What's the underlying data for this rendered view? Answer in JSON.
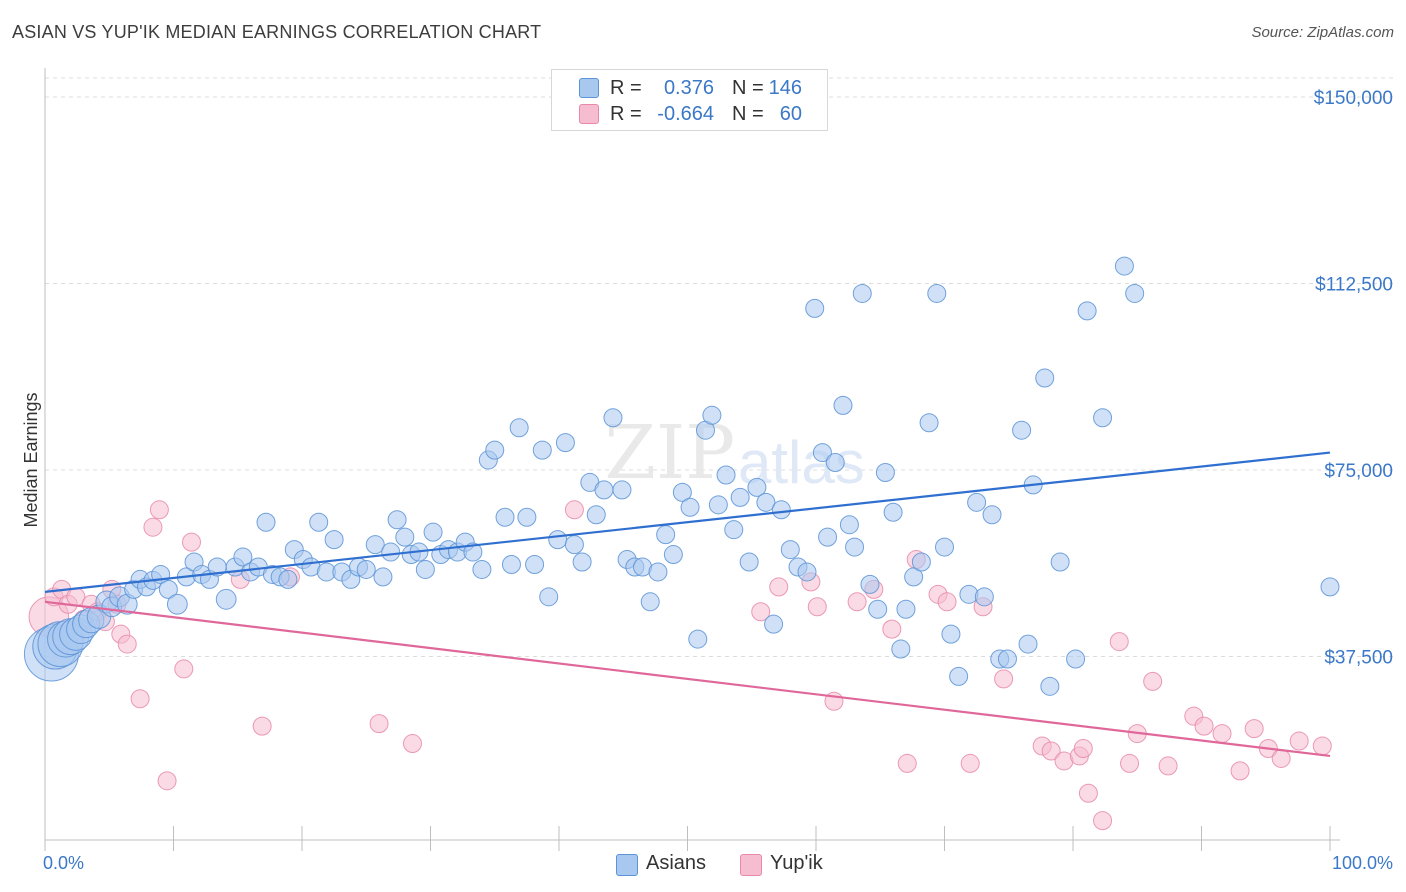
{
  "title": "ASIAN VS YUP'IK MEDIAN EARNINGS CORRELATION CHART",
  "source": "Source: ZipAtlas.com",
  "watermark": "ZIPatlas",
  "colors": {
    "asians_fill": "#a9c8f0",
    "asians_stroke": "#5b93d6",
    "asians_line": "#2f6fd0",
    "yupik_fill": "#f6bccf",
    "yupik_stroke": "#e889aa",
    "yupik_line": "#e0679a",
    "tick_text": "#3b78c8",
    "grid": "#dcdcdc"
  },
  "legend": {
    "rows": [
      {
        "r_label": "R =",
        "r_value": "0.376",
        "n_label": "N =",
        "n_value": "146"
      },
      {
        "r_label": "R =",
        "r_value": "-0.664",
        "n_label": "N =",
        "n_value": "60"
      }
    ]
  },
  "bottom_legend": [
    "Asians",
    "Yup'ik"
  ],
  "chart_data": {
    "type": "scatter",
    "title": "ASIAN VS YUP'IK MEDIAN EARNINGS CORRELATION CHART",
    "xlabel": "",
    "ylabel": "Median Earnings",
    "xlim": [
      0,
      100
    ],
    "ylim": [
      0,
      150000
    ],
    "x_tick_labels": [
      "0.0%",
      "100.0%"
    ],
    "y_ticks": [
      37500,
      75000,
      112500,
      150000
    ],
    "y_tick_labels": [
      "$37,500",
      "$75,000",
      "$112,500",
      "$150,000"
    ],
    "grid": true,
    "legend_placement": "top-center",
    "series": [
      {
        "name": "Asians",
        "trend": {
          "x": [
            0,
            100
          ],
          "y": [
            50500,
            78500
          ]
        },
        "points": [
          [
            0.5,
            38000,
            3
          ],
          [
            0.8,
            39500,
            2.5
          ],
          [
            1.2,
            40000,
            2.5
          ],
          [
            1.6,
            41000,
            2
          ],
          [
            2,
            41500,
            2
          ],
          [
            2.4,
            42000,
            1.8
          ],
          [
            2.8,
            43000,
            1.6
          ],
          [
            3.2,
            44000,
            1.5
          ],
          [
            3.6,
            44800,
            1.4
          ],
          [
            4.2,
            45500,
            1.3
          ],
          [
            4.8,
            48500,
            1.2
          ],
          [
            5.2,
            47500,
            1.1
          ],
          [
            5.8,
            49500,
            1.1
          ],
          [
            6.4,
            48000,
            1.1
          ],
          [
            6.9,
            51000,
            1
          ],
          [
            7.4,
            53000,
            1
          ],
          [
            7.9,
            51500,
            1
          ],
          [
            8.4,
            52800,
            1
          ],
          [
            9,
            54000,
            1
          ],
          [
            9.6,
            51000,
            1
          ],
          [
            10.3,
            48000,
            1.1
          ],
          [
            11,
            53500,
            1
          ],
          [
            11.6,
            56500,
            1
          ],
          [
            12.2,
            54000,
            1
          ],
          [
            12.8,
            53000,
            1
          ],
          [
            13.4,
            55500,
            1
          ],
          [
            14.1,
            49000,
            1.1
          ],
          [
            14.8,
            55500,
            1
          ],
          [
            15.4,
            57500,
            1
          ],
          [
            16,
            54500,
            1
          ],
          [
            16.6,
            55500,
            1
          ],
          [
            17.2,
            64500,
            1
          ],
          [
            17.7,
            54000,
            1
          ],
          [
            18.3,
            53500,
            1
          ],
          [
            18.9,
            53000,
            1
          ],
          [
            19.4,
            59000,
            1
          ],
          [
            20.1,
            57000,
            1
          ],
          [
            20.7,
            55500,
            1
          ],
          [
            21.3,
            64500,
            1
          ],
          [
            21.9,
            54500,
            1
          ],
          [
            22.5,
            61000,
            1
          ],
          [
            23.1,
            54500,
            1
          ],
          [
            23.8,
            53000,
            1
          ],
          [
            24.4,
            55500,
            1
          ],
          [
            25,
            55000,
            1
          ],
          [
            25.7,
            60000,
            1
          ],
          [
            26.3,
            53500,
            1
          ],
          [
            26.9,
            58500,
            1
          ],
          [
            27.4,
            65000,
            1
          ],
          [
            28,
            61500,
            1
          ],
          [
            28.5,
            58000,
            1
          ],
          [
            29.1,
            58500,
            1
          ],
          [
            29.6,
            55000,
            1
          ],
          [
            30.2,
            62500,
            1
          ],
          [
            30.8,
            58000,
            1
          ],
          [
            31.4,
            59000,
            1
          ],
          [
            32.1,
            58500,
            1
          ],
          [
            32.7,
            60500,
            1
          ],
          [
            33.3,
            58500,
            1
          ],
          [
            34,
            55000,
            1
          ],
          [
            34.5,
            77000,
            1
          ],
          [
            35,
            79000,
            1
          ],
          [
            35.8,
            65500,
            1
          ],
          [
            36.3,
            56000,
            1
          ],
          [
            36.9,
            83500,
            1
          ],
          [
            37.5,
            65500,
            1
          ],
          [
            38.1,
            56000,
            1
          ],
          [
            38.7,
            79000,
            1
          ],
          [
            39.2,
            49500,
            1
          ],
          [
            39.9,
            61000,
            1
          ],
          [
            40.5,
            80500,
            1
          ],
          [
            41.2,
            60000,
            1
          ],
          [
            41.8,
            56500,
            1
          ],
          [
            42.4,
            72500,
            1
          ],
          [
            42.9,
            66000,
            1
          ],
          [
            43.5,
            71000,
            1
          ],
          [
            44.2,
            85500,
            1
          ],
          [
            44.9,
            71000,
            1
          ],
          [
            45.3,
            57000,
            1
          ],
          [
            45.9,
            55500,
            1
          ],
          [
            46.5,
            55500,
            1
          ],
          [
            47.1,
            48500,
            1
          ],
          [
            47.7,
            54500,
            1
          ],
          [
            48.3,
            62000,
            1
          ],
          [
            48.9,
            58000,
            1
          ],
          [
            49.6,
            70500,
            1
          ],
          [
            50.2,
            67500,
            1
          ],
          [
            50.8,
            41000,
            1
          ],
          [
            51.4,
            83000,
            1
          ],
          [
            51.9,
            86000,
            1
          ],
          [
            52.4,
            68000,
            1
          ],
          [
            53,
            74000,
            1
          ],
          [
            53.6,
            63000,
            1
          ],
          [
            54.1,
            69500,
            1
          ],
          [
            54.8,
            56500,
            1
          ],
          [
            55.4,
            71500,
            1
          ],
          [
            56.1,
            68500,
            1
          ],
          [
            56.7,
            44000,
            1
          ],
          [
            57.3,
            67000,
            1
          ],
          [
            58,
            59000,
            1
          ],
          [
            58.6,
            55500,
            1
          ],
          [
            59.3,
            54500,
            1
          ],
          [
            59.9,
            107500,
            1
          ],
          [
            60.5,
            78500,
            1
          ],
          [
            60.9,
            61500,
            1
          ],
          [
            61.5,
            76500,
            1
          ],
          [
            62.1,
            88000,
            1
          ],
          [
            62.6,
            64000,
            1
          ],
          [
            63,
            59500,
            1
          ],
          [
            63.6,
            110500,
            1
          ],
          [
            64.2,
            52000,
            1
          ],
          [
            64.8,
            47000,
            1
          ],
          [
            65.4,
            74500,
            1
          ],
          [
            66,
            66500,
            1
          ],
          [
            66.6,
            39000,
            1
          ],
          [
            67,
            47000,
            1
          ],
          [
            67.6,
            53500,
            1
          ],
          [
            68.2,
            56500,
            1
          ],
          [
            68.8,
            84500,
            1
          ],
          [
            69.4,
            110500,
            1
          ],
          [
            70,
            59500,
            1
          ],
          [
            70.5,
            42000,
            1
          ],
          [
            71.1,
            33500,
            1
          ],
          [
            71.9,
            50000,
            1
          ],
          [
            72.5,
            68500,
            1
          ],
          [
            73.1,
            49500,
            1
          ],
          [
            73.7,
            66000,
            1
          ],
          [
            74.3,
            37000,
            1
          ],
          [
            74.9,
            37000,
            1
          ],
          [
            76,
            83000,
            1
          ],
          [
            76.5,
            40000,
            1
          ],
          [
            76.9,
            72000,
            1
          ],
          [
            77.8,
            93500,
            1
          ],
          [
            78.2,
            31500,
            1
          ],
          [
            79,
            56500,
            1
          ],
          [
            80.2,
            37000,
            1
          ],
          [
            81.1,
            107000,
            1
          ],
          [
            82.3,
            85500,
            1
          ],
          [
            84,
            116000,
            1
          ],
          [
            84.8,
            110500,
            1
          ],
          [
            100,
            51500,
            1
          ]
        ]
      },
      {
        "name": "Yup'ik",
        "trend": {
          "x": [
            0,
            100
          ],
          "y": [
            48500,
            17500
          ]
        },
        "points": [
          [
            0.3,
            45500,
            2.2
          ],
          [
            0.7,
            49500,
            1
          ],
          [
            1.3,
            51000,
            1
          ],
          [
            1.8,
            48000,
            1
          ],
          [
            2.4,
            49500,
            1
          ],
          [
            3,
            45000,
            1
          ],
          [
            3.6,
            48000,
            1
          ],
          [
            4.1,
            46500,
            1
          ],
          [
            4.7,
            44500,
            1
          ],
          [
            5.2,
            51000,
            1
          ],
          [
            5.6,
            48000,
            1
          ],
          [
            5.9,
            42000,
            1
          ],
          [
            6.4,
            40000,
            1
          ],
          [
            7.4,
            29000,
            1
          ],
          [
            8.4,
            63500,
            1
          ],
          [
            8.9,
            67000,
            1
          ],
          [
            9.5,
            12500,
            1
          ],
          [
            10.8,
            35000,
            1
          ],
          [
            11.4,
            60500,
            1
          ],
          [
            15.2,
            53000,
            1
          ],
          [
            16.9,
            23500,
            1
          ],
          [
            19.1,
            53500,
            1
          ],
          [
            26,
            24000,
            1
          ],
          [
            28.6,
            20000,
            1
          ],
          [
            41.2,
            67000,
            1
          ],
          [
            55.7,
            46500,
            1
          ],
          [
            57.1,
            51500,
            1
          ],
          [
            59.6,
            52500,
            1
          ],
          [
            60.1,
            47500,
            1
          ],
          [
            61.4,
            28500,
            1
          ],
          [
            63.2,
            48500,
            1
          ],
          [
            64.5,
            51000,
            1
          ],
          [
            65.9,
            43000,
            1
          ],
          [
            67.1,
            16000,
            1
          ],
          [
            67.8,
            57000,
            1
          ],
          [
            69.5,
            50000,
            1
          ],
          [
            70.2,
            48500,
            1
          ],
          [
            72,
            16000,
            1
          ],
          [
            73,
            47500,
            1
          ],
          [
            74.6,
            33000,
            1
          ],
          [
            77.6,
            19500,
            1
          ],
          [
            78.3,
            18500,
            1
          ],
          [
            79.3,
            16500,
            1
          ],
          [
            80.5,
            17500,
            1
          ],
          [
            80.8,
            19000,
            1
          ],
          [
            81.2,
            10000,
            1
          ],
          [
            82.3,
            4500,
            1
          ],
          [
            83.6,
            40500,
            1
          ],
          [
            84.4,
            16000,
            1
          ],
          [
            85,
            22000,
            1
          ],
          [
            86.2,
            32500,
            1
          ],
          [
            87.4,
            15500,
            1
          ],
          [
            89.4,
            25500,
            1
          ],
          [
            90.2,
            23500,
            1
          ],
          [
            91.6,
            22000,
            1
          ],
          [
            93,
            14500,
            1
          ],
          [
            94.1,
            23000,
            1
          ],
          [
            95.2,
            19000,
            1
          ],
          [
            96.2,
            17000,
            1
          ],
          [
            97.6,
            20500,
            1
          ],
          [
            99.4,
            19500,
            1
          ]
        ]
      }
    ]
  }
}
